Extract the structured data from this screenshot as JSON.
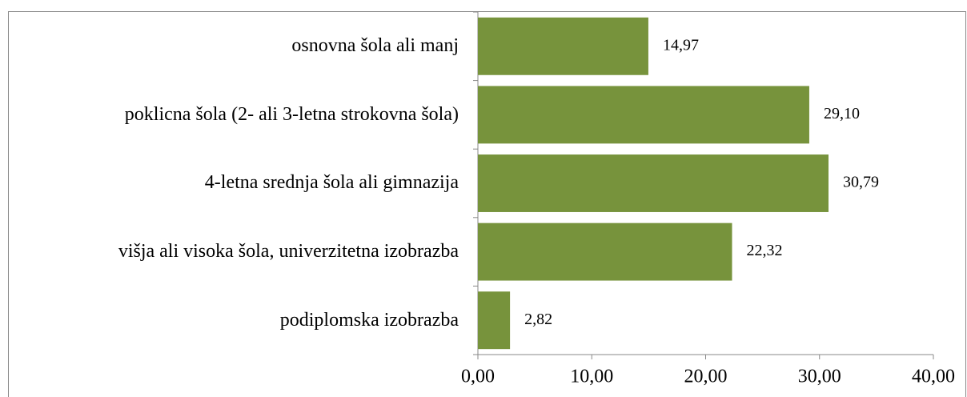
{
  "chart_data": {
    "type": "barh",
    "categories": [
      "osnovna šola ali manj",
      "poklicna šola (2- ali 3-letna strokovna šola)",
      "4-letna srednja šola ali gimnazija",
      "višja ali visoka šola, univerzitetna izobrazba",
      "podiplomska izobrazba"
    ],
    "values": [
      14.97,
      29.1,
      30.79,
      22.32,
      2.82
    ],
    "value_labels": [
      "14,97",
      "29,10",
      "30,79",
      "22,32",
      "2,82"
    ],
    "color": "#77933c",
    "xlim": [
      0,
      40
    ],
    "xticks": [
      {
        "value": 0,
        "label": "0,00"
      },
      {
        "value": 10,
        "label": "10,00"
      },
      {
        "value": 20,
        "label": "20,00"
      },
      {
        "value": 30,
        "label": "30,00"
      },
      {
        "value": 40,
        "label": "40,00"
      }
    ],
    "grid": false
  }
}
